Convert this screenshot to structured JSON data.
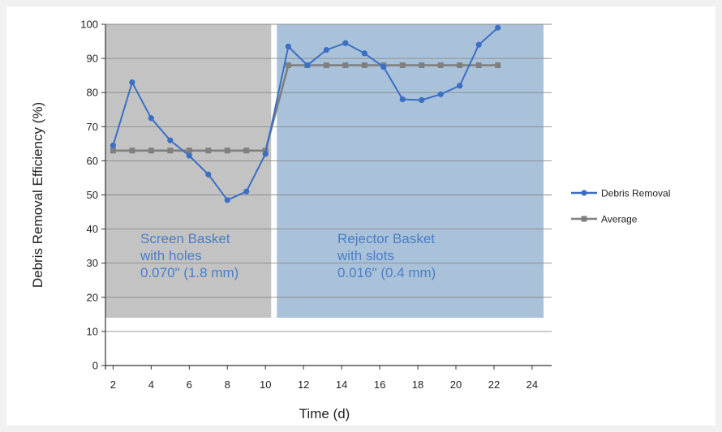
{
  "chart_data": {
    "type": "line",
    "title": "",
    "xlabel": "Time (d)",
    "ylabel": "Debris Removal Efficiency (%)",
    "xlim": [
      1.6,
      24.6
    ],
    "ylim": [
      0,
      100
    ],
    "xticks": [
      2,
      4,
      6,
      8,
      10,
      12,
      14,
      16,
      18,
      20,
      22,
      24
    ],
    "yticks": [
      0,
      10,
      20,
      30,
      40,
      50,
      60,
      70,
      80,
      90,
      100
    ],
    "grid": "horizontal",
    "legend_position": "right",
    "series": [
      {
        "name": "Debris Removal",
        "color": "#3a6fc4",
        "marker": "circle",
        "x": [
          2,
          3,
          4,
          5,
          6,
          7,
          8,
          9,
          10,
          11.2,
          12.2,
          13.2,
          14.2,
          15.2,
          16.2,
          17.2,
          18.2,
          19.2,
          20.2,
          21.2,
          22.2,
          23.2,
          24.2
        ],
        "y": [
          64.5,
          83,
          72.5,
          66,
          61.5,
          56,
          48.5,
          51,
          62,
          93.5,
          88,
          92.5,
          94.5,
          91.5,
          87.5,
          78,
          77.8,
          79.5,
          82,
          94,
          99,
          null,
          null
        ]
      },
      {
        "name": "Average",
        "color": "#7f7f7f",
        "marker": "square",
        "x": [
          2,
          3,
          4,
          5,
          6,
          7,
          8,
          9,
          10,
          11.2,
          12.2,
          13.2,
          14.2,
          15.2,
          16.2,
          17.2,
          18.2,
          19.2,
          20.2,
          21.2,
          22.2,
          23.2,
          24.2
        ],
        "y": [
          63,
          63,
          63,
          63,
          63,
          63,
          63,
          63,
          63,
          88,
          88,
          88,
          88,
          88,
          88,
          88,
          88,
          88,
          88,
          88,
          88,
          null,
          null
        ]
      }
    ],
    "regions": [
      {
        "label_lines": [
          "Screen Basket",
          "with holes",
          "0.070\" (1.8 mm)"
        ],
        "x_from": 1.6,
        "x_to": 10.3,
        "y_from": 14,
        "y_to": 100,
        "fill": "#c3c3c3",
        "text_color": "#4a7fc8"
      },
      {
        "label_lines": [
          "Rejector Basket",
          "with slots",
          "0.016\" (0.4 mm)"
        ],
        "x_from": 10.6,
        "x_to": 24.6,
        "y_from": 14,
        "y_to": 100,
        "fill": "#a9c1d9",
        "text_color": "#4a7fc8"
      }
    ]
  }
}
